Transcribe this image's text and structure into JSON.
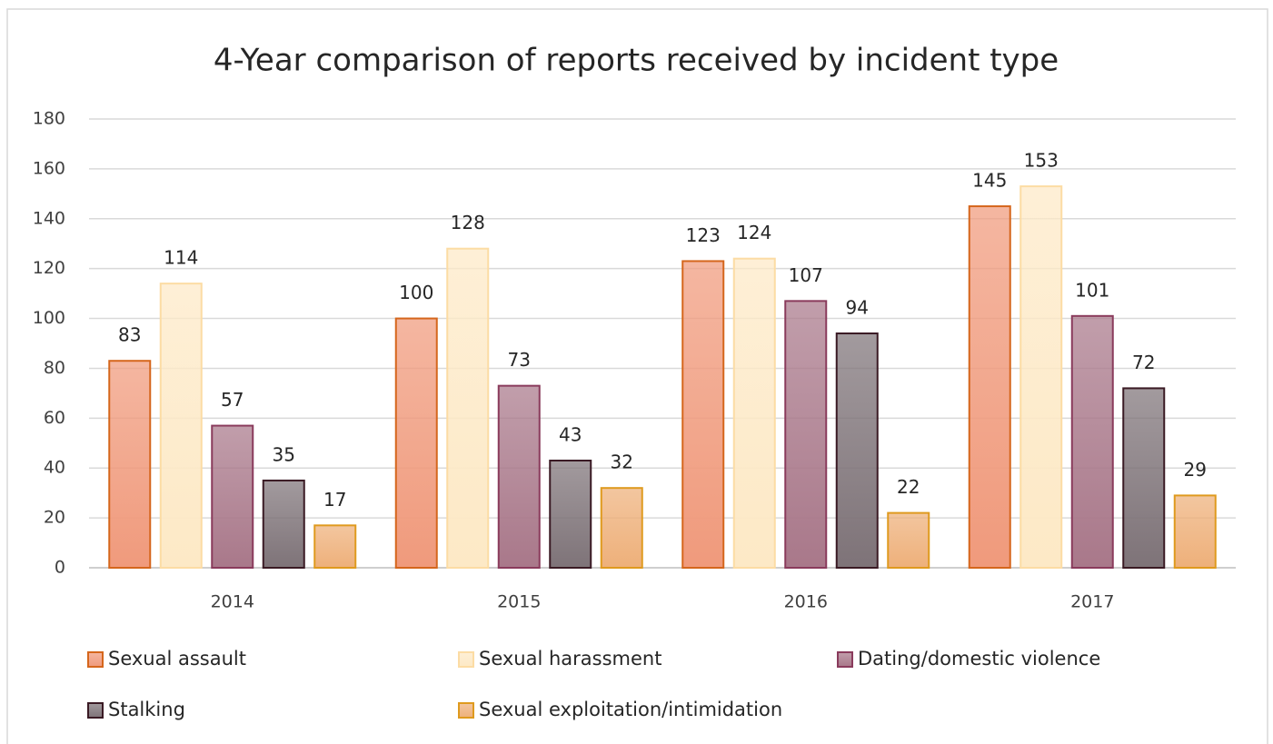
{
  "chart_data": {
    "type": "bar",
    "title": "4-Year comparison of reports received by incident type",
    "categories": [
      "2014",
      "2015",
      "2016",
      "2017"
    ],
    "series": [
      {
        "name": "Sexual assault",
        "color": "#f09a7c",
        "edge_color": "#d5661c",
        "values": [
          83,
          100,
          123,
          145
        ]
      },
      {
        "name": "Sexual harassment",
        "color": "#fde9c6",
        "edge_color": "#fcdca4",
        "values": [
          114,
          128,
          124,
          153
        ]
      },
      {
        "name": "Dating/domestic violence",
        "color": "#a9788a",
        "edge_color": "#8a3b5c",
        "values": [
          57,
          73,
          107,
          101
        ]
      },
      {
        "name": "Stalking",
        "color": "#7e7378",
        "edge_color": "#3a1a24",
        "values": [
          35,
          43,
          94,
          72
        ]
      },
      {
        "name": "Sexual exploitation/intimidation",
        "color": "#eeb07a",
        "edge_color": "#df9a1e",
        "values": [
          17,
          32,
          22,
          29
        ]
      }
    ],
    "ylim": [
      0,
      180
    ],
    "yticks": [
      0,
      20,
      40,
      60,
      80,
      100,
      120,
      140,
      160,
      180
    ],
    "grid": true,
    "legend": "bottom"
  }
}
